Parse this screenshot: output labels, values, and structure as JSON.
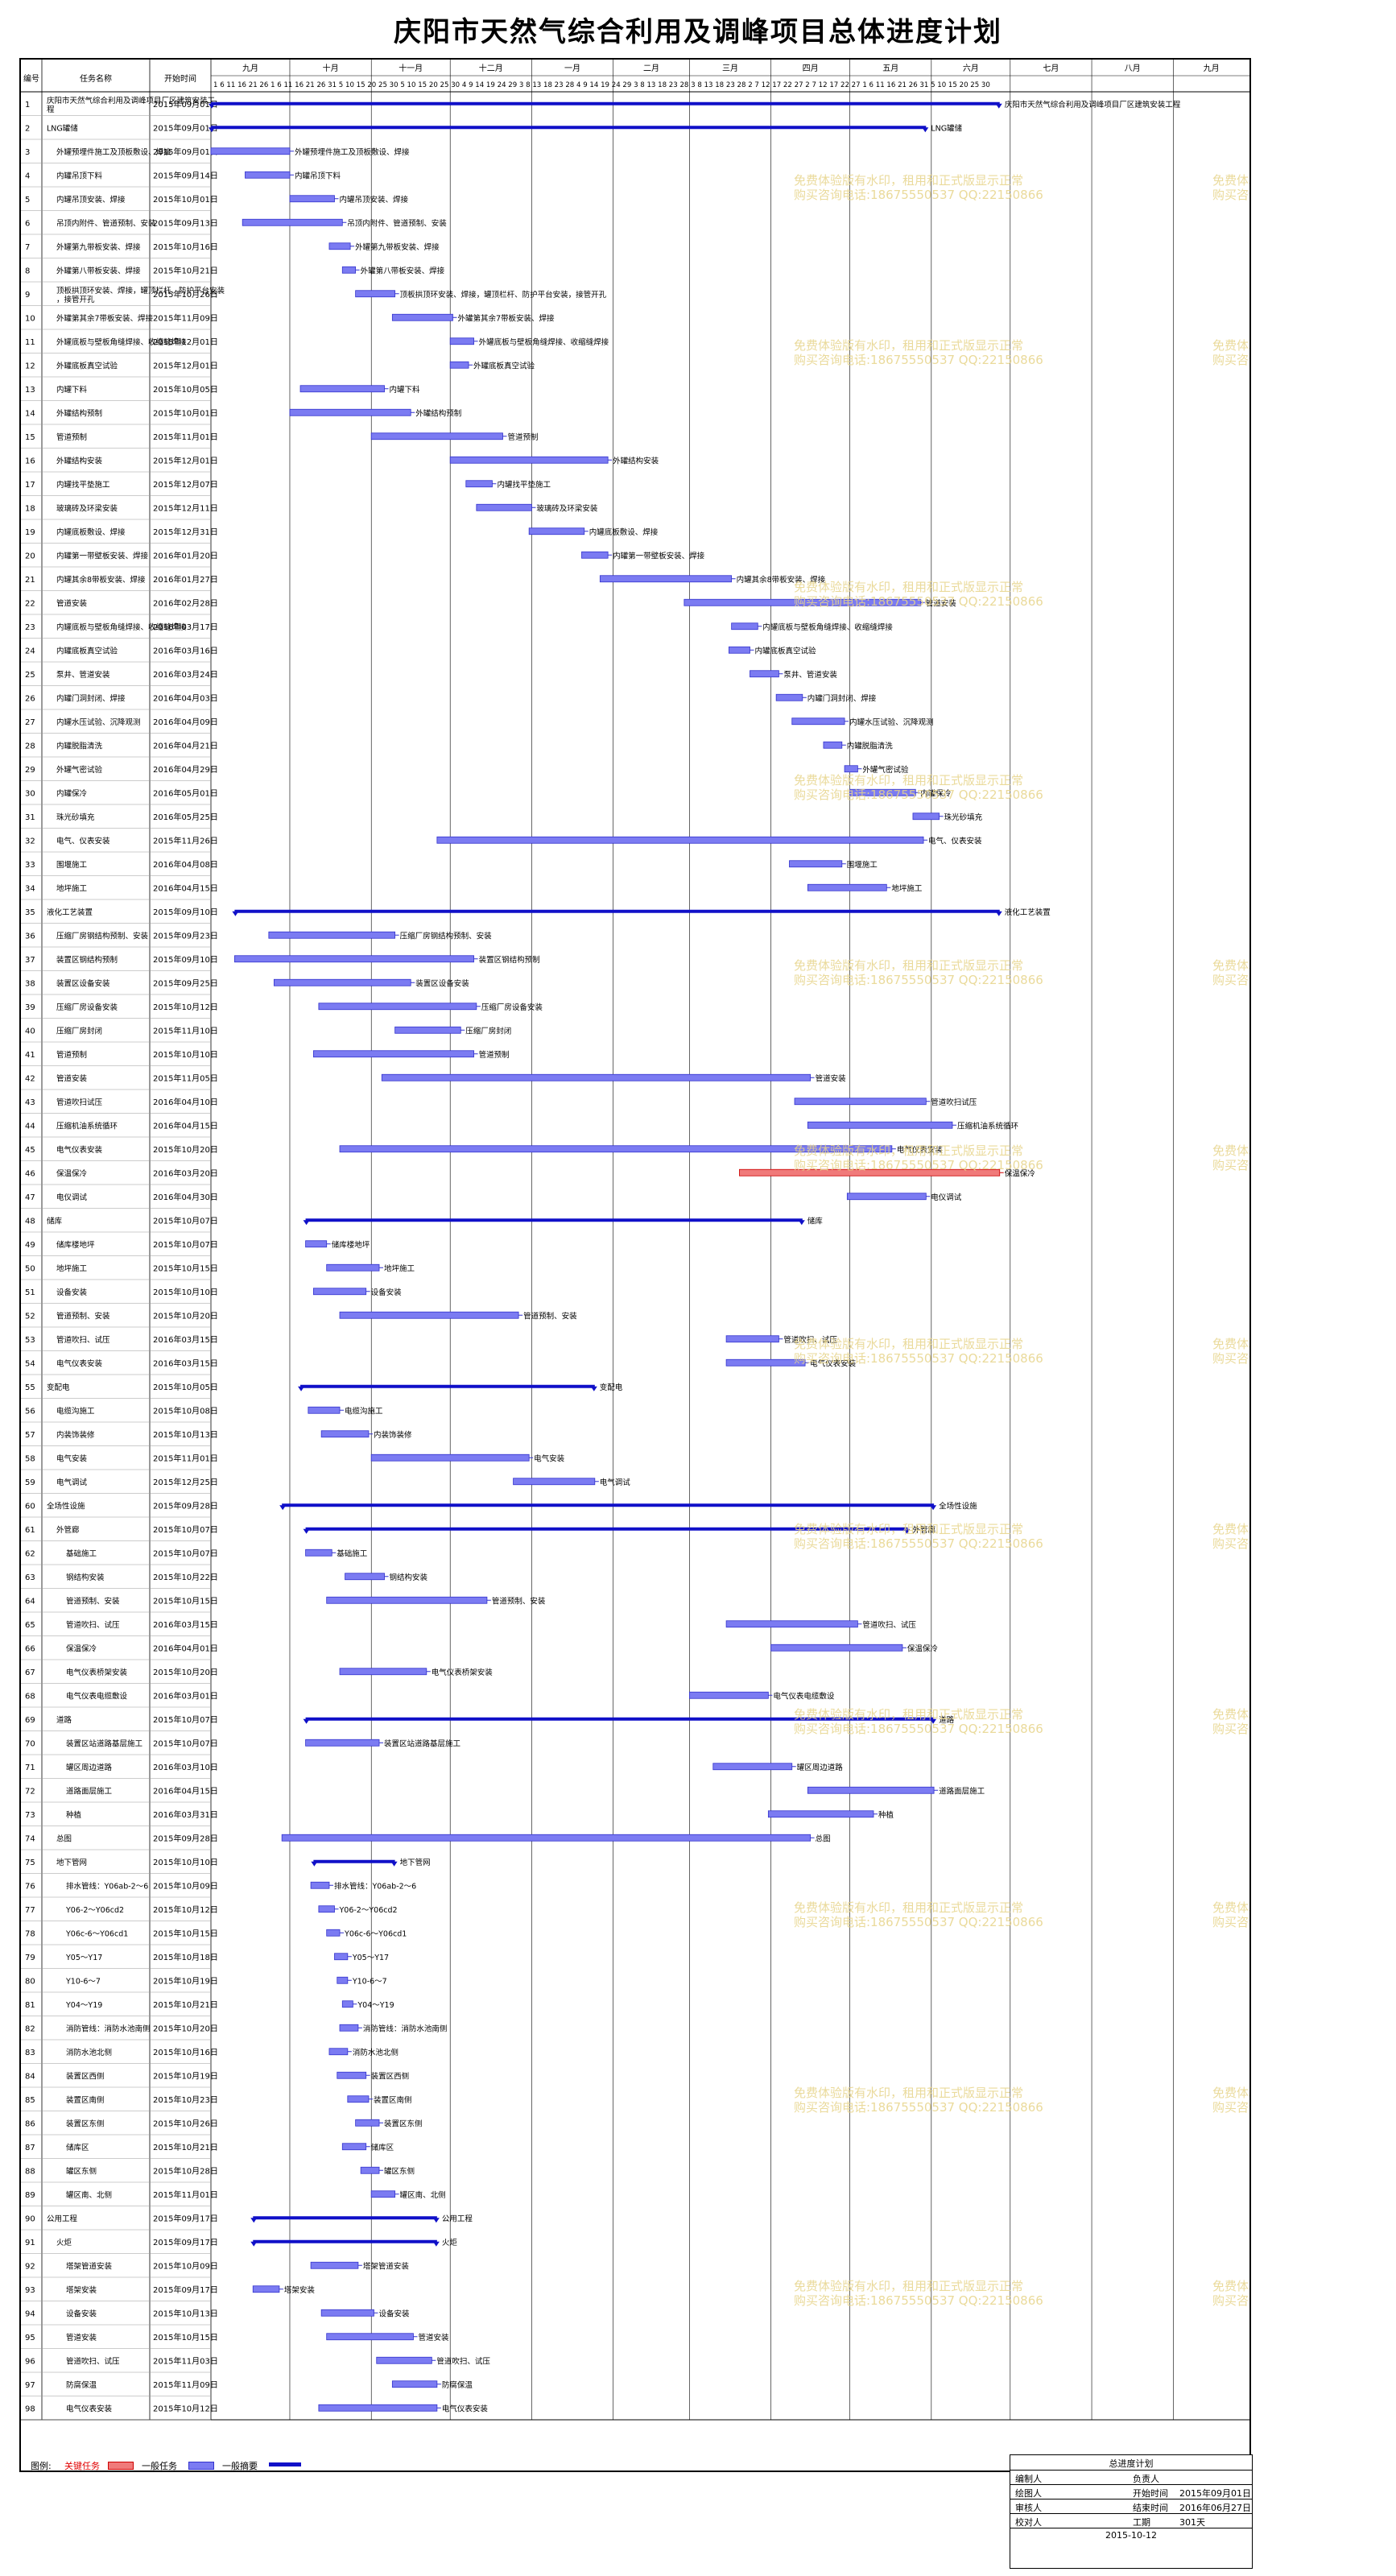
{
  "title": "庆阳市天然气综合利用及调峰项目总体进度计划",
  "header": {
    "col_id": "编号",
    "col_name": "任务名称",
    "col_start": "开始时间",
    "months": [
      "九月",
      "十月",
      "十一月",
      "十二月",
      "一月",
      "二月",
      "三月",
      "四月",
      "五月",
      "六月",
      "七月",
      "八月",
      "九月"
    ],
    "days_row": "1 6 11 16 21 26 1 6 11 16 21 26 31 5 10 15 20 25 30 5 10 15 20 25 30 4 9 14 19 24 29 3 8 13 18 23 28 4 9 14 19 24 29 3 8 13 18 23 28 3 8 13 18 23 28 2 7 12 17 22 27 2 7 12 17 22 27 1 6 11 16 21 26 31 5 10 15 20 25 30"
  },
  "tasks": [
    {
      "id": "1",
      "name": "庆阳市天然气综合利用及调峰项目厂区建筑安装工程",
      "start": "2015年09月01日",
      "s": 0,
      "e": 300,
      "type": "summary",
      "label": "庆阳市天然气综合利用及调峰项目厂区建筑安装工程",
      "indent": 0
    },
    {
      "id": "2",
      "name": "LNG罐储",
      "start": "2015年09月01日",
      "s": 0,
      "e": 272,
      "type": "summary",
      "label": "LNG罐储",
      "indent": 0
    },
    {
      "id": "3",
      "name": "外罐预埋件施工及顶板敷设、焊接",
      "start": "2015年09月01日",
      "s": 0,
      "e": 30,
      "type": "task",
      "label": "外罐预埋件施工及顶板敷设、焊接",
      "indent": 1
    },
    {
      "id": "4",
      "name": "内罐吊顶下料",
      "start": "2015年09月14日",
      "s": 13,
      "e": 30,
      "type": "task",
      "label": "内罐吊顶下料",
      "indent": 1
    },
    {
      "id": "5",
      "name": "内罐吊顶安装、焊接",
      "start": "2015年10月01日",
      "s": 30,
      "e": 47,
      "type": "task",
      "label": "内罐吊顶安装、焊接",
      "indent": 1
    },
    {
      "id": "6",
      "name": "吊顶内附件、管道预制、安装",
      "start": "2015年09月13日",
      "s": 12,
      "e": 50,
      "type": "task",
      "label": "吊顶内附件、管道预制、安装",
      "indent": 1
    },
    {
      "id": "7",
      "name": "外罐第九带板安装、焊接",
      "start": "2015年10月16日",
      "s": 45,
      "e": 53,
      "type": "task",
      "label": "外罐第九带板安装、焊接",
      "indent": 1
    },
    {
      "id": "8",
      "name": "外罐第八带板安装、焊接",
      "start": "2015年10月21日",
      "s": 50,
      "e": 55,
      "type": "task",
      "label": "外罐第八带板安装、焊接",
      "indent": 1
    },
    {
      "id": "9",
      "name": "顶板拱顶环安装、焊接，罐顶栏杆、防护平台安装，接管开孔",
      "start": "2015年10月26日",
      "s": 55,
      "e": 70,
      "type": "task",
      "label": "顶板拱顶环安装、焊接，罐顶栏杆、防护平台安装，接管开孔",
      "indent": 1
    },
    {
      "id": "10",
      "name": "外罐第其余7带板安装、焊接",
      "start": "2015年11月09日",
      "s": 69,
      "e": 92,
      "type": "task",
      "label": "外罐第其余7带板安装、焊接",
      "indent": 1
    },
    {
      "id": "11",
      "name": "外罐底板与壁板角缝焊接、收缩缝焊接",
      "start": "2015年12月01日",
      "s": 91,
      "e": 100,
      "type": "task",
      "label": "外罐底板与壁板角缝焊接、收缩缝焊接",
      "indent": 1
    },
    {
      "id": "12",
      "name": "外罐底板真空试验",
      "start": "2015年12月01日",
      "s": 91,
      "e": 98,
      "type": "task",
      "label": "外罐底板真空试验",
      "indent": 1
    },
    {
      "id": "13",
      "name": "内罐下料",
      "start": "2015年10月05日",
      "s": 34,
      "e": 66,
      "type": "task",
      "label": "内罐下料",
      "indent": 1
    },
    {
      "id": "14",
      "name": "外罐结构预制",
      "start": "2015年10月01日",
      "s": 30,
      "e": 76,
      "type": "task",
      "label": "外罐结构预制",
      "indent": 1
    },
    {
      "id": "15",
      "name": "管道预制",
      "start": "2015年11月01日",
      "s": 61,
      "e": 111,
      "type": "task",
      "label": "管道预制",
      "indent": 1
    },
    {
      "id": "16",
      "name": "外罐结构安装",
      "start": "2015年12月01日",
      "s": 91,
      "e": 151,
      "type": "task",
      "label": "外罐结构安装",
      "indent": 1
    },
    {
      "id": "17",
      "name": "内罐找平垫施工",
      "start": "2015年12月07日",
      "s": 97,
      "e": 107,
      "type": "task",
      "label": "内罐找平垫施工",
      "indent": 1
    },
    {
      "id": "18",
      "name": "玻璃砖及环梁安装",
      "start": "2015年12月11日",
      "s": 101,
      "e": 122,
      "type": "task",
      "label": "玻璃砖及环梁安装",
      "indent": 1
    },
    {
      "id": "19",
      "name": "内罐底板敷设、焊接",
      "start": "2015年12月31日",
      "s": 121,
      "e": 142,
      "type": "task",
      "label": "内罐底板敷设、焊接",
      "indent": 1
    },
    {
      "id": "20",
      "name": "内罐第一带壁板安装、焊接",
      "start": "2016年01月20日",
      "s": 141,
      "e": 151,
      "type": "task",
      "label": "内罐第一带壁板安装、焊接",
      "indent": 1
    },
    {
      "id": "21",
      "name": "内罐其余8带板安装、焊接",
      "start": "2016年01月27日",
      "s": 148,
      "e": 198,
      "type": "task",
      "label": "内罐其余8带板安装、焊接",
      "indent": 1
    },
    {
      "id": "22",
      "name": "管道安装",
      "start": "2016年02月28日",
      "s": 180,
      "e": 270,
      "type": "task",
      "label": "管道安装",
      "indent": 1
    },
    {
      "id": "23",
      "name": "内罐底板与壁板角缝焊接、收缩缝焊接",
      "start": "2016年03月17日",
      "s": 198,
      "e": 208,
      "type": "task",
      "label": "内罐底板与壁板角缝焊接、收缩缝焊接",
      "indent": 1
    },
    {
      "id": "24",
      "name": "内罐底板真空试验",
      "start": "2016年03月16日",
      "s": 197,
      "e": 205,
      "type": "task",
      "label": "内罐底板真空试验",
      "indent": 1
    },
    {
      "id": "25",
      "name": "泵井、管道安装",
      "start": "2016年03月24日",
      "s": 205,
      "e": 216,
      "type": "task",
      "label": "泵井、管道安装",
      "indent": 1
    },
    {
      "id": "26",
      "name": "内罐门洞封闭、焊接",
      "start": "2016年04月03日",
      "s": 215,
      "e": 225,
      "type": "task",
      "label": "内罐门洞封闭、焊接",
      "indent": 1
    },
    {
      "id": "27",
      "name": "内罐水压试验、沉降观测",
      "start": "2016年04月09日",
      "s": 221,
      "e": 241,
      "type": "task",
      "label": "内罐水压试验、沉降观测",
      "indent": 1
    },
    {
      "id": "28",
      "name": "内罐脱脂清洗",
      "start": "2016年04月21日",
      "s": 233,
      "e": 240,
      "type": "task",
      "label": "内罐脱脂清洗",
      "indent": 1
    },
    {
      "id": "29",
      "name": "外罐气密试验",
      "start": "2016年04月29日",
      "s": 241,
      "e": 246,
      "type": "task",
      "label": "外罐气密试验",
      "indent": 1
    },
    {
      "id": "30",
      "name": "内罐保冷",
      "start": "2016年05月01日",
      "s": 243,
      "e": 268,
      "type": "task",
      "label": "内罐保冷",
      "indent": 1
    },
    {
      "id": "31",
      "name": "珠光砂填充",
      "start": "2016年05月25日",
      "s": 267,
      "e": 277,
      "type": "task",
      "label": "珠光砂填充",
      "indent": 1
    },
    {
      "id": "32",
      "name": "电气、仪表安装",
      "start": "2015年11月26日",
      "s": 86,
      "e": 271,
      "type": "task",
      "label": "电气、仪表安装",
      "indent": 1
    },
    {
      "id": "33",
      "name": "围堰施工",
      "start": "2016年04月08日",
      "s": 220,
      "e": 240,
      "type": "task",
      "label": "围堰施工",
      "indent": 1
    },
    {
      "id": "34",
      "name": "地坪施工",
      "start": "2016年04月15日",
      "s": 227,
      "e": 257,
      "type": "task",
      "label": "地坪施工",
      "indent": 1
    },
    {
      "id": "35",
      "name": "液化工艺装置",
      "start": "2015年09月10日",
      "s": 9,
      "e": 300,
      "type": "summary",
      "label": "液化工艺装置",
      "indent": 0
    },
    {
      "id": "36",
      "name": "压缩厂房钢结构预制、安装",
      "start": "2015年09月23日",
      "s": 22,
      "e": 70,
      "type": "task",
      "label": "压缩厂房钢结构预制、安装",
      "indent": 1
    },
    {
      "id": "37",
      "name": "装置区钢结构预制",
      "start": "2015年09月10日",
      "s": 9,
      "e": 100,
      "type": "task",
      "label": "装置区钢结构预制",
      "indent": 1
    },
    {
      "id": "38",
      "name": "装置区设备安装",
      "start": "2015年09月25日",
      "s": 24,
      "e": 76,
      "type": "task",
      "label": "装置区设备安装",
      "indent": 1
    },
    {
      "id": "39",
      "name": "压缩厂房设备安装",
      "start": "2015年10月12日",
      "s": 41,
      "e": 101,
      "type": "task",
      "label": "压缩厂房设备安装",
      "indent": 1
    },
    {
      "id": "40",
      "name": "压缩厂房封闭",
      "start": "2015年11月10日",
      "s": 70,
      "e": 95,
      "type": "task",
      "label": "压缩厂房封闭",
      "indent": 1
    },
    {
      "id": "41",
      "name": "管道预制",
      "start": "2015年10月10日",
      "s": 39,
      "e": 100,
      "type": "task",
      "label": "管道预制",
      "indent": 1
    },
    {
      "id": "42",
      "name": "管道安装",
      "start": "2015年11月05日",
      "s": 65,
      "e": 228,
      "type": "task",
      "label": "管道安装",
      "indent": 1
    },
    {
      "id": "43",
      "name": "管道吹扫试压",
      "start": "2016年04月10日",
      "s": 222,
      "e": 272,
      "type": "task",
      "label": "管道吹扫试压",
      "indent": 1
    },
    {
      "id": "44",
      "name": "压缩机油系统循环",
      "start": "2016年04月15日",
      "s": 227,
      "e": 282,
      "type": "task",
      "label": "压缩机油系统循环",
      "indent": 1
    },
    {
      "id": "45",
      "name": "电气仪表安装",
      "start": "2015年10月20日",
      "s": 49,
      "e": 259,
      "type": "task",
      "label": "电气仪表安装",
      "indent": 1
    },
    {
      "id": "46",
      "name": "保温保冷",
      "start": "2016年03月20日",
      "s": 201,
      "e": 300,
      "type": "critical",
      "label": "保温保冷",
      "indent": 1
    },
    {
      "id": "47",
      "name": "电仪调试",
      "start": "2016年04月30日",
      "s": 242,
      "e": 272,
      "type": "task",
      "label": "电仪调试",
      "indent": 1
    },
    {
      "id": "48",
      "name": "储库",
      "start": "2015年10月07日",
      "s": 36,
      "e": 225,
      "type": "summary",
      "label": "储库",
      "indent": 0
    },
    {
      "id": "49",
      "name": "储库楼地坪",
      "start": "2015年10月07日",
      "s": 36,
      "e": 44,
      "type": "task",
      "label": "储库楼地坪",
      "indent": 1
    },
    {
      "id": "50",
      "name": "地坪施工",
      "start": "2015年10月15日",
      "s": 44,
      "e": 64,
      "type": "task",
      "label": "地坪施工",
      "indent": 1
    },
    {
      "id": "51",
      "name": "设备安装",
      "start": "2015年10月10日",
      "s": 39,
      "e": 59,
      "type": "task",
      "label": "设备安装",
      "indent": 1
    },
    {
      "id": "52",
      "name": "管道预制、安装",
      "start": "2015年10月20日",
      "s": 49,
      "e": 117,
      "type": "task",
      "label": "管道预制、安装",
      "indent": 1
    },
    {
      "id": "53",
      "name": "管道吹扫、试压",
      "start": "2016年03月15日",
      "s": 196,
      "e": 216,
      "type": "task",
      "label": "管道吹扫、试压",
      "indent": 1
    },
    {
      "id": "54",
      "name": "电气仪表安装",
      "start": "2016年03月15日",
      "s": 196,
      "e": 226,
      "type": "task",
      "label": "电气仪表安装",
      "indent": 1
    },
    {
      "id": "55",
      "name": "变配电",
      "start": "2015年10月05日",
      "s": 34,
      "e": 146,
      "type": "summary",
      "label": "变配电",
      "indent": 0
    },
    {
      "id": "56",
      "name": "电缆沟施工",
      "start": "2015年10月08日",
      "s": 37,
      "e": 49,
      "type": "task",
      "label": "电缆沟施工",
      "indent": 1
    },
    {
      "id": "57",
      "name": "内装饰装修",
      "start": "2015年10月13日",
      "s": 42,
      "e": 60,
      "type": "task",
      "label": "内装饰装修",
      "indent": 1
    },
    {
      "id": "58",
      "name": "电气安装",
      "start": "2015年11月01日",
      "s": 61,
      "e": 121,
      "type": "task",
      "label": "电气安装",
      "indent": 1
    },
    {
      "id": "59",
      "name": "电气调试",
      "start": "2015年12月25日",
      "s": 115,
      "e": 146,
      "type": "task",
      "label": "电气调试",
      "indent": 1
    },
    {
      "id": "60",
      "name": "全场性设施",
      "start": "2015年09月28日",
      "s": 27,
      "e": 275,
      "type": "summary",
      "label": "全场性设施",
      "indent": 0
    },
    {
      "id": "61",
      "name": "外管廊",
      "start": "2015年10月07日",
      "s": 36,
      "e": 265,
      "type": "summary",
      "label": "外管廊",
      "indent": 1
    },
    {
      "id": "62",
      "name": "基础施工",
      "start": "2015年10月07日",
      "s": 36,
      "e": 46,
      "type": "task",
      "label": "基础施工",
      "indent": 2
    },
    {
      "id": "63",
      "name": "钢结构安装",
      "start": "2015年10月22日",
      "s": 51,
      "e": 66,
      "type": "task",
      "label": "钢结构安装",
      "indent": 2
    },
    {
      "id": "64",
      "name": "管道预制、安装",
      "start": "2015年10月15日",
      "s": 44,
      "e": 105,
      "type": "task",
      "label": "管道预制、安装",
      "indent": 2
    },
    {
      "id": "65",
      "name": "管道吹扫、试压",
      "start": "2016年03月15日",
      "s": 196,
      "e": 246,
      "type": "task",
      "label": "管道吹扫、试压",
      "indent": 2
    },
    {
      "id": "66",
      "name": "保温保冷",
      "start": "2016年04月01日",
      "s": 213,
      "e": 263,
      "type": "task",
      "label": "保温保冷",
      "indent": 2
    },
    {
      "id": "67",
      "name": "电气仪表桥架安装",
      "start": "2015年10月20日",
      "s": 49,
      "e": 82,
      "type": "task",
      "label": "电气仪表桥架安装",
      "indent": 2
    },
    {
      "id": "68",
      "name": "电气仪表电缆敷设",
      "start": "2016年03月01日",
      "s": 182,
      "e": 212,
      "type": "task",
      "label": "电气仪表电缆敷设",
      "indent": 2
    },
    {
      "id": "69",
      "name": "道路",
      "start": "2015年10月07日",
      "s": 36,
      "e": 275,
      "type": "summary",
      "label": "道路",
      "indent": 1
    },
    {
      "id": "70",
      "name": "装置区站道路基层施工",
      "start": "2015年10月07日",
      "s": 36,
      "e": 64,
      "type": "task",
      "label": "装置区站道路基层施工",
      "indent": 2
    },
    {
      "id": "71",
      "name": "罐区周边道路",
      "start": "2016年03月10日",
      "s": 191,
      "e": 221,
      "type": "task",
      "label": "罐区周边道路",
      "indent": 2
    },
    {
      "id": "72",
      "name": "道路面层施工",
      "start": "2016年04月15日",
      "s": 227,
      "e": 275,
      "type": "task",
      "label": "道路面层施工",
      "indent": 2
    },
    {
      "id": "73",
      "name": "种植",
      "start": "2016年03月31日",
      "s": 212,
      "e": 252,
      "type": "task",
      "label": "种植",
      "indent": 2
    },
    {
      "id": "74",
      "name": "总图",
      "start": "2015年09月28日",
      "s": 27,
      "e": 228,
      "type": "task",
      "label": "总图",
      "indent": 1
    },
    {
      "id": "75",
      "name": "地下管网",
      "start": "2015年10月10日",
      "s": 39,
      "e": 70,
      "type": "summary",
      "label": "地下管网",
      "indent": 1
    },
    {
      "id": "76",
      "name": "排水管线：Y06ab-2～6",
      "start": "2015年10月09日",
      "s": 38,
      "e": 45,
      "type": "task",
      "label": "排水管线：Y06ab-2～6",
      "indent": 2
    },
    {
      "id": "77",
      "name": "Y06-2～Y06cd2",
      "start": "2015年10月12日",
      "s": 41,
      "e": 47,
      "type": "task",
      "label": "Y06-2～Y06cd2",
      "indent": 2
    },
    {
      "id": "78",
      "name": "Y06c-6～Y06cd1",
      "start": "2015年10月15日",
      "s": 44,
      "e": 49,
      "type": "task",
      "label": "Y06c-6～Y06cd1",
      "indent": 2
    },
    {
      "id": "79",
      "name": "Y05～Y17",
      "start": "2015年10月18日",
      "s": 47,
      "e": 52,
      "type": "task",
      "label": "Y05～Y17",
      "indent": 2
    },
    {
      "id": "80",
      "name": "Y10-6～7",
      "start": "2015年10月19日",
      "s": 48,
      "e": 52,
      "type": "task",
      "label": "Y10-6～7",
      "indent": 2
    },
    {
      "id": "81",
      "name": "Y04～Y19",
      "start": "2015年10月21日",
      "s": 50,
      "e": 54,
      "type": "task",
      "label": "Y04～Y19",
      "indent": 2
    },
    {
      "id": "82",
      "name": "消防管线：消防水池南侧",
      "start": "2015年10月20日",
      "s": 49,
      "e": 56,
      "type": "task",
      "label": "消防管线：消防水池南侧",
      "indent": 2
    },
    {
      "id": "83",
      "name": "消防水池北侧",
      "start": "2015年10月16日",
      "s": 45,
      "e": 52,
      "type": "task",
      "label": "消防水池北侧",
      "indent": 2
    },
    {
      "id": "84",
      "name": "装置区西侧",
      "start": "2015年10月19日",
      "s": 48,
      "e": 59,
      "type": "task",
      "label": "装置区西侧",
      "indent": 2
    },
    {
      "id": "85",
      "name": "装置区南侧",
      "start": "2015年10月23日",
      "s": 52,
      "e": 60,
      "type": "task",
      "label": "装置区南侧",
      "indent": 2
    },
    {
      "id": "86",
      "name": "装置区东侧",
      "start": "2015年10月26日",
      "s": 55,
      "e": 64,
      "type": "task",
      "label": "装置区东侧",
      "indent": 2
    },
    {
      "id": "87",
      "name": "储库区",
      "start": "2015年10月21日",
      "s": 50,
      "e": 59,
      "type": "task",
      "label": "储库区",
      "indent": 2
    },
    {
      "id": "88",
      "name": "罐区东侧",
      "start": "2015年10月28日",
      "s": 57,
      "e": 64,
      "type": "task",
      "label": "罐区东侧",
      "indent": 2
    },
    {
      "id": "89",
      "name": "罐区南、北侧",
      "start": "2015年11月01日",
      "s": 61,
      "e": 70,
      "type": "task",
      "label": "罐区南、北侧",
      "indent": 2
    },
    {
      "id": "90",
      "name": "公用工程",
      "start": "2015年09月17日",
      "s": 16,
      "e": 86,
      "type": "summary",
      "label": "公用工程",
      "indent": 0
    },
    {
      "id": "91",
      "name": "火炬",
      "start": "2015年09月17日",
      "s": 16,
      "e": 86,
      "type": "summary",
      "label": "火炬",
      "indent": 1
    },
    {
      "id": "92",
      "name": "塔架管道安装",
      "start": "2015年10月09日",
      "s": 38,
      "e": 56,
      "type": "task",
      "label": "塔架管道安装",
      "indent": 2
    },
    {
      "id": "93",
      "name": "塔架安装",
      "start": "2015年09月17日",
      "s": 16,
      "e": 26,
      "type": "task",
      "label": "塔架安装",
      "indent": 2
    },
    {
      "id": "94",
      "name": "设备安装",
      "start": "2015年10月13日",
      "s": 42,
      "e": 62,
      "type": "task",
      "label": "设备安装",
      "indent": 2
    },
    {
      "id": "95",
      "name": "管道安装",
      "start": "2015年10月15日",
      "s": 44,
      "e": 77,
      "type": "task",
      "label": "管道安装",
      "indent": 2
    },
    {
      "id": "96",
      "name": "管道吹扫、试压",
      "start": "2015年11月03日",
      "s": 63,
      "e": 84,
      "type": "task",
      "label": "管道吹扫、试压",
      "indent": 2
    },
    {
      "id": "97",
      "name": "防腐保温",
      "start": "2015年11月09日",
      "s": 69,
      "e": 86,
      "type": "task",
      "label": "防腐保温",
      "indent": 2
    },
    {
      "id": "98",
      "name": "电气仪表安装",
      "start": "2015年10月12日",
      "s": 41,
      "e": 86,
      "type": "task",
      "label": "电气仪表安装",
      "indent": 2
    }
  ],
  "watermark": {
    "line1": "免费体验版有水印，租用和正式版显示正常",
    "line2": "购买咨询电话:18675550537 QQ:22150866"
  },
  "legend": {
    "label": "图例:",
    "critical": "关键任务",
    "normal": "一般任务",
    "summary": "一般摘要"
  },
  "infobox": {
    "title": "总进度计划",
    "rows": [
      {
        "k1": "编制人",
        "v1": "",
        "k2": "负责人",
        "v2": ""
      },
      {
        "k1": "绘图人",
        "v1": "",
        "k2": "开始时间",
        "v2": "2015年09月01日"
      },
      {
        "k1": "审核人",
        "v1": "",
        "k2": "结束时间",
        "v2": "2016年06月27日"
      },
      {
        "k1": "校对人",
        "v1": "",
        "k2": "工期",
        "v2": "301天"
      }
    ],
    "date": "2015-10-12"
  },
  "colors": {
    "task": "#7b7bf2",
    "task_border": "#3333cc",
    "summary": "#1010c8",
    "critical": "#f07a7a",
    "critical_text": "#e00000",
    "link": "#3030cc"
  }
}
